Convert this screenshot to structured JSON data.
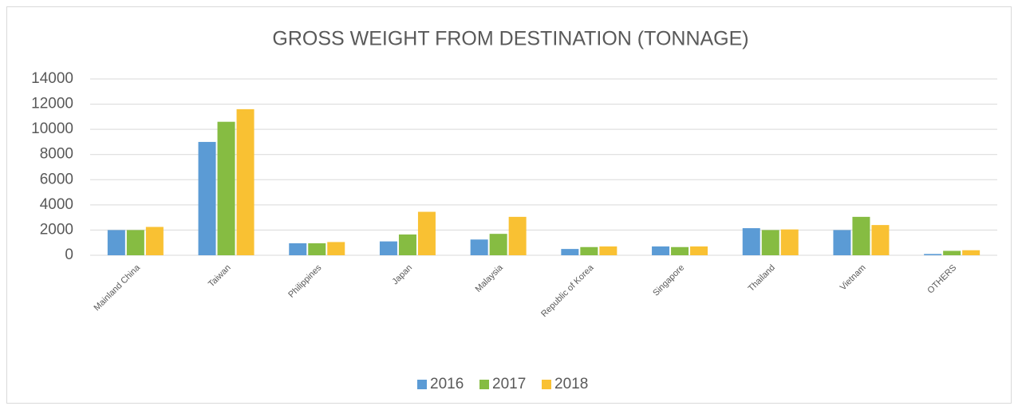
{
  "chart_data": {
    "type": "bar",
    "title": "GROSS WEIGHT FROM DESTINATION (TONNAGE)",
    "categories": [
      "Mainland China",
      "Taiwan",
      "Philippines",
      "Japan",
      "Malaysia",
      "Republic of Korea",
      "Singapore",
      "Thailand",
      "Vietnam",
      "OTHERS"
    ],
    "series": [
      {
        "name": "2016",
        "color": "#5b9bd5",
        "values": [
          2000,
          9000,
          950,
          1100,
          1250,
          500,
          700,
          2150,
          2000,
          100
        ]
      },
      {
        "name": "2017",
        "color": "#86bc42",
        "values": [
          2000,
          10600,
          950,
          1650,
          1700,
          650,
          650,
          2000,
          3050,
          350
        ]
      },
      {
        "name": "2018",
        "color": "#f9c133",
        "values": [
          2250,
          11600,
          1050,
          3450,
          3050,
          700,
          700,
          2050,
          2400,
          400
        ]
      }
    ],
    "ylim": [
      0,
      14000
    ],
    "yticks": [
      0,
      2000,
      4000,
      6000,
      8000,
      10000,
      12000,
      14000
    ],
    "grid": true,
    "legend": "bottom"
  }
}
